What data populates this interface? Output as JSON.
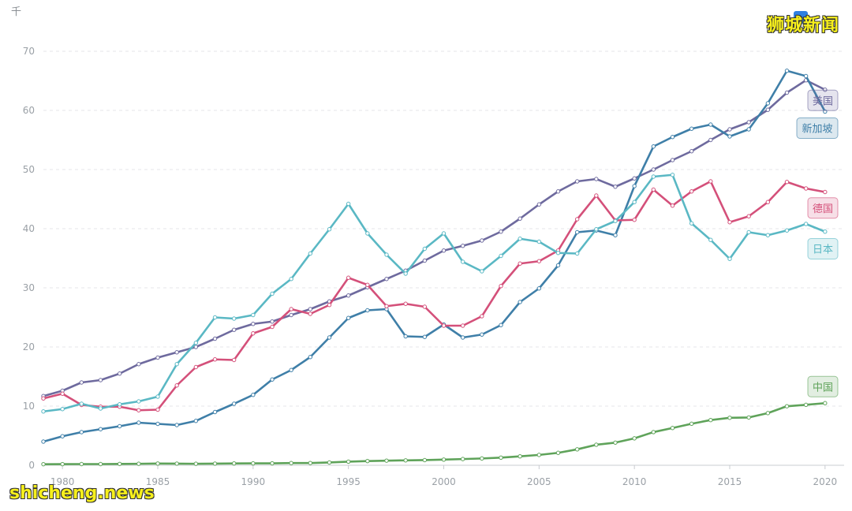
{
  "watermarks": {
    "top_right": "狮城新闻",
    "bottom_left": "shicheng.news"
  },
  "chart_data": {
    "type": "line",
    "title": "",
    "ylabel": "千",
    "xlabel": "",
    "ylim": [
      0,
      70
    ],
    "xlim": [
      1979,
      2020
    ],
    "y_ticks": [
      0,
      10,
      20,
      30,
      40,
      50,
      60,
      70
    ],
    "x_ticks": [
      1980,
      1985,
      1990,
      1995,
      2000,
      2005,
      2010,
      2015,
      2020
    ],
    "x": [
      1979,
      1980,
      1981,
      1982,
      1983,
      1984,
      1985,
      1986,
      1987,
      1988,
      1989,
      1990,
      1991,
      1992,
      1993,
      1994,
      1995,
      1996,
      1997,
      1998,
      1999,
      2000,
      2001,
      2002,
      2003,
      2004,
      2005,
      2006,
      2007,
      2008,
      2009,
      2010,
      2011,
      2012,
      2013,
      2014,
      2015,
      2016,
      2017,
      2018,
      2019,
      2020
    ],
    "series": [
      {
        "name": "美国",
        "color": "#6e6a9e",
        "values": [
          11.7,
          12.6,
          14.0,
          14.4,
          15.5,
          17.1,
          18.2,
          19.1,
          20.0,
          21.4,
          22.9,
          23.9,
          24.3,
          25.4,
          26.4,
          27.7,
          28.7,
          30.1,
          31.5,
          32.9,
          34.6,
          36.3,
          37.1,
          38.0,
          39.5,
          41.7,
          44.1,
          46.3,
          48.0,
          48.4,
          47.1,
          48.5,
          50.0,
          51.6,
          53.1,
          55.0,
          56.8,
          58.0,
          60.1,
          63.0,
          65.1,
          63.5
        ]
      },
      {
        "name": "新加坡",
        "color": "#3f7fa8",
        "values": [
          4.0,
          4.9,
          5.6,
          6.1,
          6.6,
          7.2,
          7.0,
          6.8,
          7.5,
          9.0,
          10.4,
          11.9,
          14.5,
          16.1,
          18.3,
          21.6,
          24.9,
          26.2,
          26.4,
          21.8,
          21.7,
          23.8,
          21.6,
          22.1,
          23.7,
          27.6,
          29.9,
          33.8,
          39.4,
          39.7,
          38.9,
          47.2,
          53.9,
          55.5,
          56.9,
          57.6,
          55.6,
          56.8,
          61.2,
          66.7,
          65.8,
          59.8
        ]
      },
      {
        "name": "德国",
        "color": "#d4507a",
        "values": [
          11.3,
          12.1,
          10.2,
          9.9,
          9.9,
          9.3,
          9.4,
          13.5,
          16.6,
          17.9,
          17.8,
          22.3,
          23.4,
          26.4,
          25.6,
          27.1,
          31.7,
          30.5,
          26.9,
          27.3,
          26.8,
          23.6,
          23.6,
          25.2,
          30.3,
          34.1,
          34.5,
          36.3,
          41.6,
          45.6,
          41.4,
          41.5,
          46.6,
          43.9,
          46.3,
          48.0,
          41.1,
          42.1,
          44.5,
          47.9,
          46.8,
          46.2
        ]
      },
      {
        "name": "日本",
        "color": "#5ab8c4",
        "values": [
          9.1,
          9.5,
          10.4,
          9.6,
          10.3,
          10.8,
          11.6,
          17.1,
          20.7,
          25.0,
          24.8,
          25.4,
          29.0,
          31.5,
          35.8,
          39.9,
          44.2,
          39.2,
          35.6,
          32.4,
          36.6,
          39.2,
          34.4,
          32.8,
          35.4,
          38.3,
          37.8,
          35.9,
          35.8,
          39.9,
          41.3,
          44.5,
          48.8,
          49.1,
          40.9,
          38.1,
          34.9,
          39.4,
          38.9,
          39.7,
          40.8,
          39.5
        ]
      },
      {
        "name": "中国",
        "color": "#5fa35a",
        "values": [
          0.18,
          0.19,
          0.2,
          0.2,
          0.23,
          0.25,
          0.29,
          0.28,
          0.25,
          0.28,
          0.31,
          0.32,
          0.33,
          0.37,
          0.38,
          0.47,
          0.61,
          0.71,
          0.78,
          0.83,
          0.87,
          0.96,
          1.05,
          1.15,
          1.29,
          1.51,
          1.75,
          2.1,
          2.69,
          3.47,
          3.83,
          4.55,
          5.61,
          6.3,
          7.02,
          7.64,
          8.03,
          8.08,
          8.82,
          9.98,
          10.22,
          10.5
        ]
      }
    ],
    "end_labels": [
      {
        "name": "美国",
        "color": "#6e6a9e",
        "anchor": 61.7
      },
      {
        "name": "新加坡",
        "color": "#3f7fa8",
        "anchor": 57.0
      },
      {
        "name": "德国",
        "color": "#d4507a",
        "anchor": 43.5
      },
      {
        "name": "日本",
        "color": "#5ab8c4",
        "anchor": 36.6
      },
      {
        "name": "中国",
        "color": "#5fa35a",
        "anchor": 13.3
      }
    ]
  }
}
